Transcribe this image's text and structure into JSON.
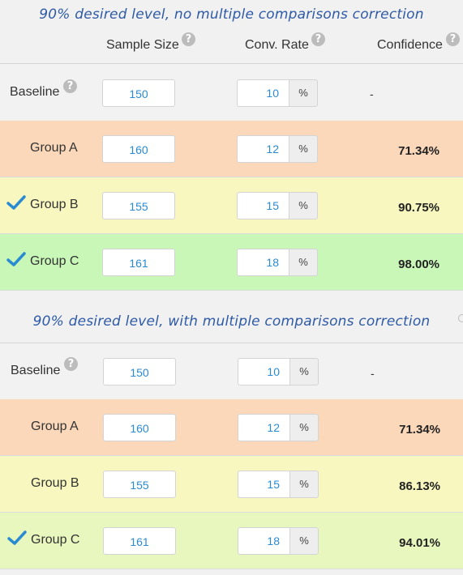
{
  "colors": {
    "title": "#2e5aa6",
    "input_text": "#2a8ad2",
    "check": "#2a8ad2",
    "baseline_bg": "#f2f2f2",
    "orange_bg": "#fbd8b9",
    "yellow_bg": "#f7f7bf",
    "green1_bg": "#c9f7b8",
    "green2_bg": "#e8f7bd"
  },
  "headers": {
    "sample_size": "Sample Size",
    "conv_rate": "Conv. Rate",
    "confidence": "Confidence",
    "help_glyph": "?"
  },
  "sections": [
    {
      "title": "90% desired level, no multiple comparisons correction",
      "rows": [
        {
          "label": "Baseline",
          "help": "?",
          "sample_size": "150",
          "conv_rate": "10",
          "unit": "%",
          "confidence": "-",
          "checked": false,
          "bg": "baseline_bg"
        },
        {
          "label": "Group A",
          "sample_size": "160",
          "conv_rate": "12",
          "unit": "%",
          "confidence": "71.34%",
          "checked": false,
          "bg": "orange_bg"
        },
        {
          "label": "Group B",
          "sample_size": "155",
          "conv_rate": "15",
          "unit": "%",
          "confidence": "90.75%",
          "checked": true,
          "bg": "yellow_bg"
        },
        {
          "label": "Group C",
          "sample_size": "161",
          "conv_rate": "18",
          "unit": "%",
          "confidence": "98.00%",
          "checked": true,
          "bg": "green1_bg"
        }
      ]
    },
    {
      "title": "90% desired level, with multiple comparisons correction",
      "rows": [
        {
          "label": "Baseline",
          "help": "?",
          "sample_size": "150",
          "conv_rate": "10",
          "unit": "%",
          "confidence": "-",
          "checked": false,
          "bg": "baseline_bg"
        },
        {
          "label": "Group A",
          "sample_size": "160",
          "conv_rate": "12",
          "unit": "%",
          "confidence": "71.34%",
          "checked": false,
          "bg": "orange_bg"
        },
        {
          "label": "Group B",
          "sample_size": "155",
          "conv_rate": "15",
          "unit": "%",
          "confidence": "86.13%",
          "checked": false,
          "bg": "yellow_bg"
        },
        {
          "label": "Group C",
          "sample_size": "161",
          "conv_rate": "18",
          "unit": "%",
          "confidence": "94.01%",
          "checked": true,
          "bg": "green2_bg"
        }
      ]
    }
  ]
}
